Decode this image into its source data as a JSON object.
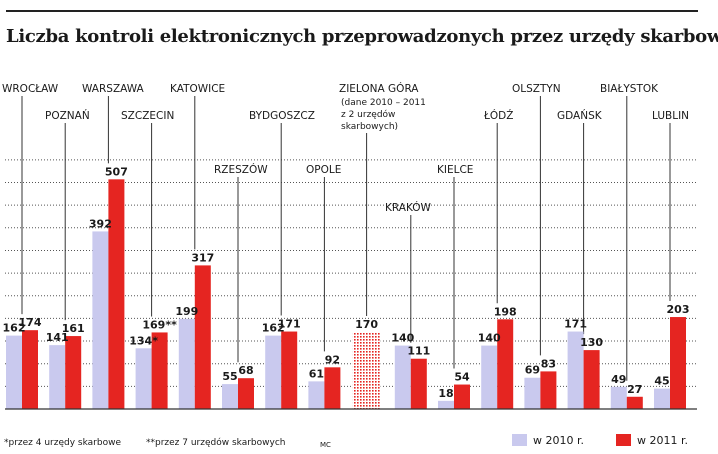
{
  "title": "Liczba kontroli elektronicznych przeprowadzonych przez urzędy skarbowe",
  "footnote1": "*przez 4 urzędy skarbowe",
  "footnote2": "**przez 7 urzędów skarbowych",
  "credit": "MC",
  "colors": {
    "y2010": "#c9c9ee",
    "y2011": "#e52521",
    "hatch": "#e52521"
  },
  "chart_data": {
    "type": "bar",
    "categories": [
      "WROCŁAW",
      "POZNAŃ",
      "WARSZAWA",
      "SZCZECIN",
      "KATOWICE",
      "RZESZÓW",
      "BYDGOSZCZ",
      "OPOLE",
      "ZIELONA GÓRA",
      "KRAKÓW",
      "KIELCE",
      "ŁÓDŹ",
      "OLSZTYN",
      "GDAŃSK",
      "BIAŁYSTOK",
      "LUBLIN"
    ],
    "category_notes": {
      "ZIELONA GÓRA": [
        "(dane 2010 – 2011",
        "z 2 urzędów",
        "skarbowych)"
      ]
    },
    "series": [
      {
        "name": "w 2010 r.",
        "values": [
          162,
          141,
          392,
          134,
          199,
          55,
          162,
          61,
          null,
          140,
          18,
          140,
          69,
          171,
          49,
          45
        ],
        "labels": [
          "162",
          "141",
          "392",
          "134*",
          "199",
          "55",
          "162",
          "61",
          "",
          "140",
          "18",
          "140",
          "69",
          "171",
          "49",
          "45"
        ]
      },
      {
        "name": "w 2011 r.",
        "values": [
          174,
          161,
          507,
          169,
          317,
          68,
          171,
          92,
          null,
          111,
          54,
          198,
          83,
          130,
          27,
          203
        ],
        "labels": [
          "174",
          "161",
          "507",
          "169**",
          "317",
          "68",
          "171",
          "92",
          "",
          "111",
          "54",
          "198",
          "83",
          "130",
          "27",
          "203"
        ]
      }
    ],
    "combined": {
      "category": "ZIELONA GÓRA",
      "value": 170,
      "label": "170"
    },
    "ylim": [
      0,
      560
    ],
    "grid": true,
    "legend": "bottom-right"
  }
}
